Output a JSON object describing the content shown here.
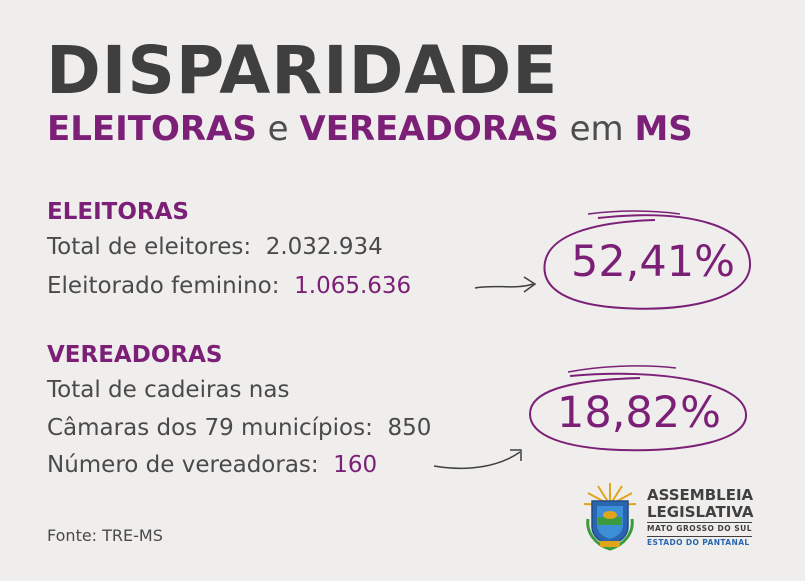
{
  "title": "DISPARIDADE",
  "subtitle": {
    "word1": "ELEITORAS",
    "conj": "e",
    "word2": "VEREADORAS",
    "prep": "em",
    "word3": "MS"
  },
  "eleitoras": {
    "heading": "ELEITORAS",
    "total_label": "Total de eleitores:",
    "total_value": "2.032.934",
    "fem_label": "Eleitorado feminino:",
    "fem_value": "1.065.636",
    "percent": "52,41%"
  },
  "vereadoras": {
    "heading": "VEREADORAS",
    "line1": "Total de cadeiras nas",
    "line2_label": "Câmaras dos 79 municípios:",
    "line2_value": "850",
    "count_label": "Número de vereadoras:",
    "count_value": "160",
    "percent": "18,82%"
  },
  "source": "Fonte: TRE-MS",
  "logo": {
    "line1": "ASSEMBLEIA",
    "line2": "LEGISLATIVA",
    "line3": "MATO GROSSO DO SUL",
    "line4": "ESTADO DO PANTANAL"
  },
  "colors": {
    "accent": "#7c2077",
    "text": "#4a4a4a",
    "title": "#3f3f3f",
    "background": "#efeeec"
  }
}
